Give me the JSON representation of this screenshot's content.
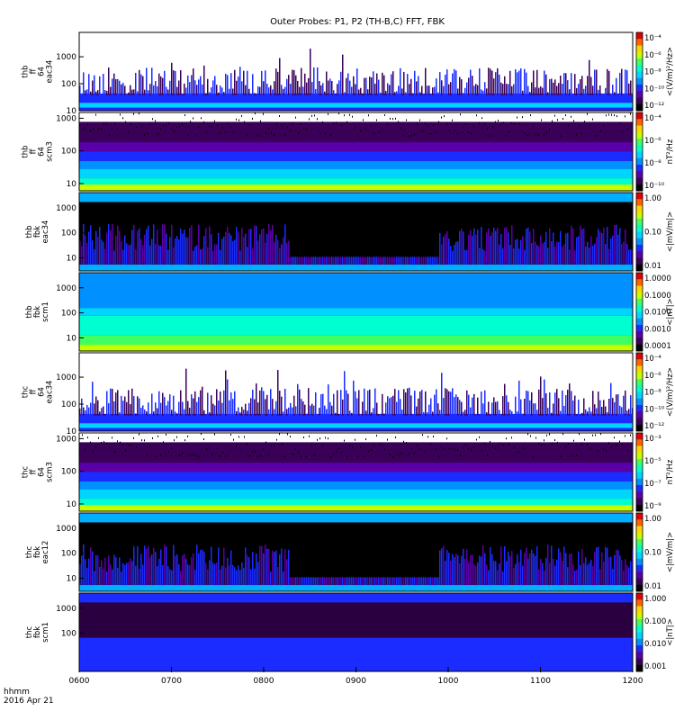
{
  "chart_data": {
    "type": "heatmap",
    "title": "Outer Probes: P1, P2 (TH-B,C) FFT, FBK",
    "time_axis": {
      "ticks": [
        "0600",
        "0700",
        "0800",
        "0900",
        "1000",
        "1100",
        "1200"
      ],
      "label_line1": "hhmm",
      "label_line2": "2016 Apr 21",
      "range_hours": [
        6,
        12
      ]
    },
    "panels": [
      {
        "id": "thb-ff-eac34",
        "ylabel": [
          "thb",
          "ff",
          "64",
          "eac34"
        ],
        "yrange": [
          10,
          8000
        ],
        "yticks": [
          "10",
          "100",
          "1000"
        ],
        "colorbar_label": "<(V/m)²/Hz>",
        "colorbar_ticks": [
          "10⁻⁴",
          "10⁻⁶",
          "10⁻⁸",
          "10⁻¹⁰",
          "10⁻¹²"
        ],
        "style": "spiky"
      },
      {
        "id": "thb-ff-scm3",
        "ylabel": [
          "thb",
          "ff",
          "64",
          "scm3"
        ],
        "yrange": [
          6,
          1500
        ],
        "yticks": [
          "10",
          "100",
          "1000"
        ],
        "colorbar_label": "nT²/Hz",
        "colorbar_ticks": [
          "10⁻⁴",
          "10⁻⁶",
          "10⁻⁸",
          "10⁻¹⁰"
        ],
        "style": "layered"
      },
      {
        "id": "thb-fbk-eac34",
        "ylabel": [
          "thb",
          "fbk",
          "eac34"
        ],
        "yrange": [
          3,
          4000
        ],
        "yticks": [
          "10",
          "100",
          "1000"
        ],
        "colorbar_label": "<|mV/m|>",
        "colorbar_ticks": [
          "1.00",
          "0.10",
          "0.01"
        ],
        "style": "blocky"
      },
      {
        "id": "thb-fbk-scm1",
        "ylabel": [
          "thb",
          "fbk",
          "scm1"
        ],
        "yrange": [
          3,
          4000
        ],
        "yticks": [
          "10",
          "100",
          "1000"
        ],
        "colorbar_label": "<|nT|>",
        "colorbar_ticks": [
          "1.0000",
          "0.1000",
          "0.0100",
          "0.0010",
          "0.0001"
        ],
        "style": "bands"
      },
      {
        "id": "thc-ff-eac34",
        "ylabel": [
          "thc",
          "ff",
          "64",
          "eac34"
        ],
        "yrange": [
          10,
          8000
        ],
        "yticks": [
          "10",
          "100",
          "1000"
        ],
        "colorbar_label": "<(V/m)²/Hz>",
        "colorbar_ticks": [
          "10⁻⁴",
          "10⁻⁶",
          "10⁻⁸",
          "10⁻¹⁰",
          "10⁻¹²"
        ],
        "style": "spiky"
      },
      {
        "id": "thc-ff-scm3",
        "ylabel": [
          "thc",
          "ff",
          "64",
          "scm3"
        ],
        "yrange": [
          6,
          1500
        ],
        "yticks": [
          "10",
          "100",
          "1000"
        ],
        "colorbar_label": "nT²/Hz",
        "colorbar_ticks": [
          "10⁻³",
          "10⁻⁵",
          "10⁻⁷",
          "10⁻⁹"
        ],
        "style": "layered"
      },
      {
        "id": "thc-fbk-eac12",
        "ylabel": [
          "thc",
          "fbk",
          "eac12"
        ],
        "yrange": [
          3,
          4000
        ],
        "yticks": [
          "10",
          "100",
          "1000"
        ],
        "colorbar_label": "<|mV/m|>",
        "colorbar_ticks": [
          "1.00",
          "0.10",
          "0.01"
        ],
        "style": "blocky"
      },
      {
        "id": "thc-fbk-scm1",
        "ylabel": [
          "thc",
          "fbk",
          "scm1"
        ],
        "yrange": [
          3,
          4000
        ],
        "yticks": [
          "100",
          "1000"
        ],
        "colorbar_label": "<|nT|>",
        "colorbar_ticks": [
          "1.000",
          "0.100",
          "0.010",
          "0.001"
        ],
        "style": "dark"
      }
    ]
  }
}
